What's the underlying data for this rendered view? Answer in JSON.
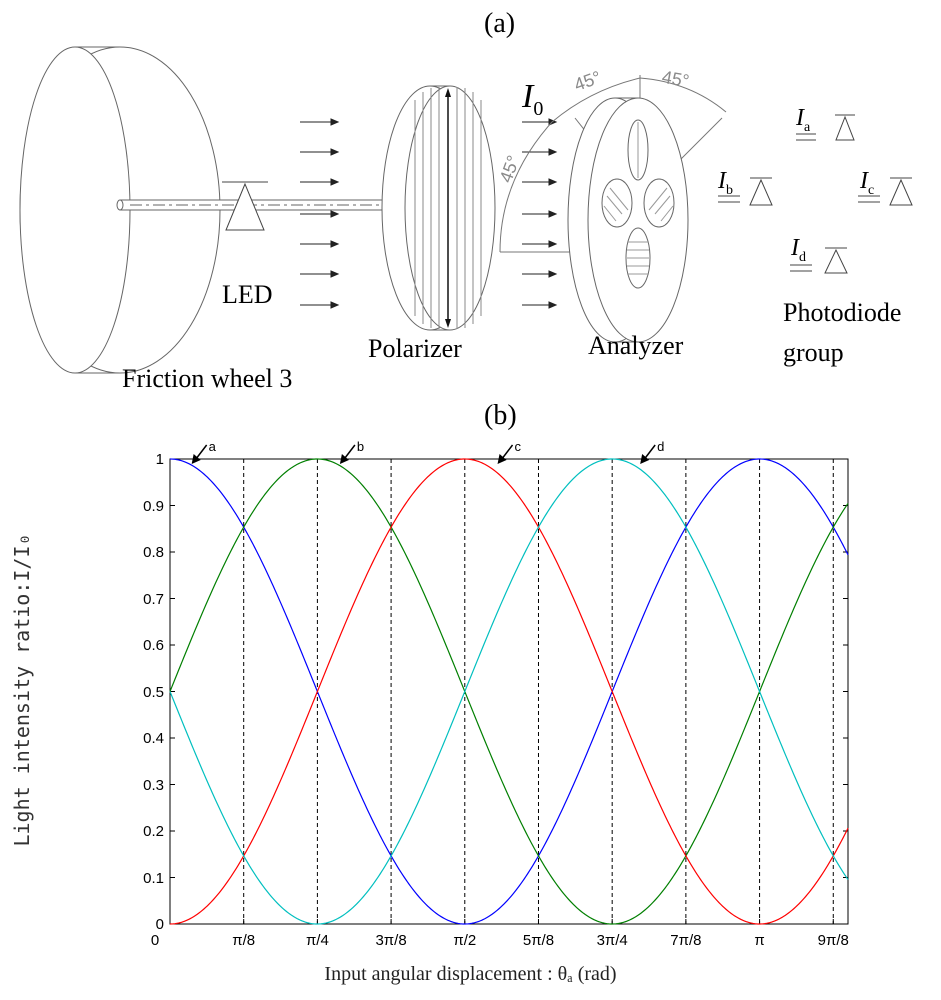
{
  "panel_a": {
    "label": "(a)",
    "intensity_symbol": "I",
    "intensity_sub": "0",
    "led_label": "LED",
    "friction_wheel_label": "Friction wheel 3",
    "polarizer_label": "Polarizer",
    "analyzer_label": "Analyzer",
    "photodiode_label_line1": "Photodiode",
    "photodiode_label_line2": "group",
    "angle_label_top_left": "45°",
    "angle_label_top_right": "45°",
    "angle_label_side": "45°",
    "photodiodes": [
      {
        "symbol": "I",
        "sub": "a"
      },
      {
        "symbol": "I",
        "sub": "b"
      },
      {
        "symbol": "I",
        "sub": "c"
      },
      {
        "symbol": "I",
        "sub": "d"
      }
    ]
  },
  "panel_b": {
    "label": "(b)",
    "ylabel": "Light intensity ratio:I/I₀",
    "xlabel": "Input angular displacement : θₐ (rad)"
  },
  "chart_data": {
    "type": "line",
    "xlim_rad": [
      0,
      3.6128
    ],
    "ylim": [
      0,
      1
    ],
    "yticks": [
      0,
      0.1,
      0.2,
      0.3,
      0.4,
      0.5,
      0.6,
      0.7,
      0.8,
      0.9,
      1
    ],
    "ytick_labels": [
      "0",
      "0.1",
      "0.2",
      "0.3",
      "0.4",
      "0.5",
      "0.6",
      "0.7",
      "0.8",
      "0.9",
      "1"
    ],
    "xticks_rad": [
      0,
      0.3927,
      0.7854,
      1.1781,
      1.5708,
      1.9635,
      2.3562,
      2.7489,
      3.1416,
      3.5343
    ],
    "xtick_labels": [
      "0",
      "π/8",
      "π/4",
      "3π/8",
      "π/2",
      "5π/8",
      "3π/4",
      "7π/8",
      "π",
      "9π/8"
    ],
    "dashed_vertical_lines_rad": [
      0.3927,
      0.7854,
      1.1781,
      1.5708,
      1.9635,
      2.3562,
      2.7489,
      3.1416,
      3.5343
    ],
    "series": [
      {
        "name": "a",
        "color": "#0000ff",
        "formula": "cos^2(theta)",
        "phase_rad": 0
      },
      {
        "name": "b",
        "color": "#007f00",
        "formula": "cos^2(theta - pi/4)",
        "phase_rad": 0.7854
      },
      {
        "name": "c",
        "color": "#ff0000",
        "formula": "cos^2(theta - pi/2)",
        "phase_rad": 1.5708
      },
      {
        "name": "d",
        "color": "#00bfbf",
        "formula": "cos^2(theta - 3pi/4)",
        "phase_rad": 2.3562
      }
    ],
    "annotations": [
      {
        "text": "a",
        "x_rad": 0.11,
        "y": 1.0
      },
      {
        "text": "b",
        "x_rad": 0.9,
        "y": 1.0
      },
      {
        "text": "c",
        "x_rad": 1.74,
        "y": 1.0
      },
      {
        "text": "d",
        "x_rad": 2.5,
        "y": 1.0
      }
    ]
  }
}
